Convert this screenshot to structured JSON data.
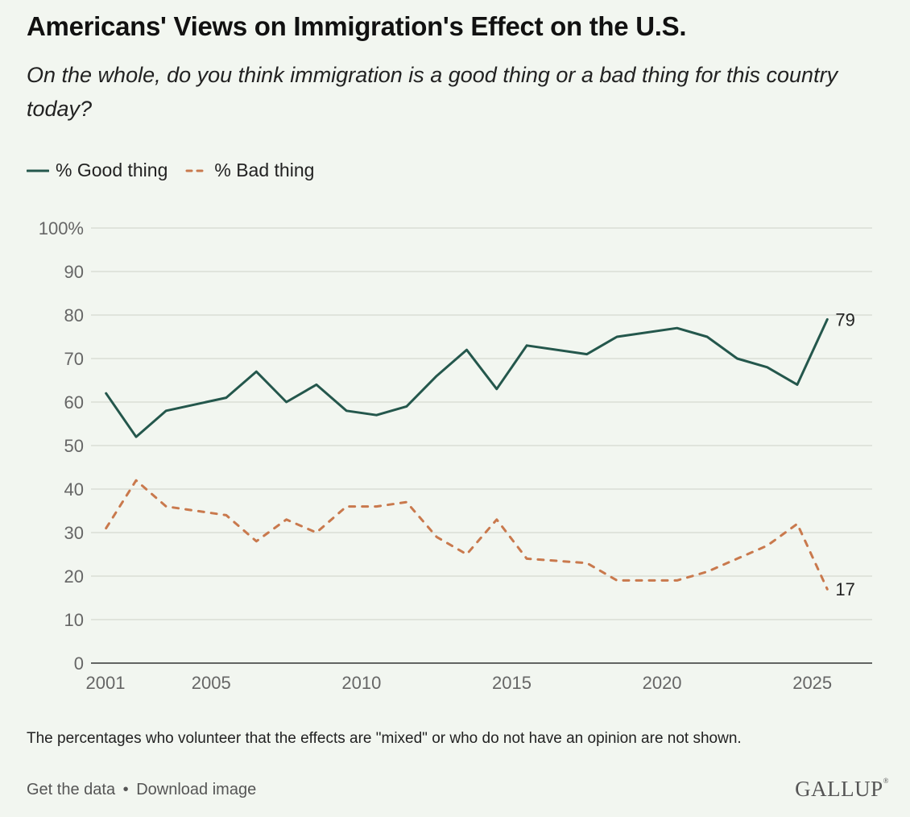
{
  "title": "Americans' Views on Immigration's Effect on the U.S.",
  "subtitle": "On the whole, do you think immigration is a good thing or a bad thing for this country today?",
  "footnote": "The percentages who volunteer that the effects are \"mixed\" or who do not have an opinion are not shown.",
  "links": {
    "get_data": "Get the data",
    "separator": "•",
    "download": "Download image"
  },
  "brand": "GALLUP",
  "colors": {
    "good": "#24574c",
    "bad": "#c9794d",
    "grid": "#d9ddd6",
    "axis": "#333333",
    "tick_text": "#666666",
    "background": "#f2f6f0"
  },
  "chart_data": {
    "type": "line",
    "x": [
      2001.5,
      2002.5,
      2003.5,
      2005.5,
      2006.5,
      2007.5,
      2008.5,
      2009.5,
      2010.5,
      2011.5,
      2012.5,
      2013.5,
      2014.5,
      2015.5,
      2017.5,
      2018.5,
      2020.5,
      2021.5,
      2022.5,
      2023.5,
      2024.5,
      2025.5
    ],
    "series": [
      {
        "name": "% Good thing",
        "color": "#24574c",
        "dash": false,
        "end_label": "79",
        "values": [
          62,
          52,
          58,
          61,
          67,
          60,
          64,
          58,
          57,
          59,
          66,
          72,
          63,
          73,
          71,
          75,
          77,
          75,
          70,
          68,
          64,
          79
        ]
      },
      {
        "name": "% Bad thing",
        "color": "#c9794d",
        "dash": true,
        "end_label": "17",
        "values": [
          31,
          42,
          36,
          34,
          28,
          33,
          30,
          36,
          36,
          37,
          29,
          25,
          33,
          24,
          23,
          19,
          19,
          21,
          24,
          27,
          32,
          17
        ]
      }
    ],
    "xticks": [
      "2001",
      "2005",
      "2010",
      "2015",
      "2020",
      "2025"
    ],
    "xtick_values": [
      2001,
      2005,
      2010,
      2015,
      2020,
      2025
    ],
    "yticks": [
      "0",
      "10",
      "20",
      "30",
      "40",
      "50",
      "60",
      "70",
      "80",
      "90",
      "100%"
    ],
    "ytick_values": [
      0,
      10,
      20,
      30,
      40,
      50,
      60,
      70,
      80,
      90,
      100
    ],
    "xlim": [
      2001,
      2026
    ],
    "ylim": [
      0,
      100
    ],
    "grid": true,
    "legend": "top-left"
  }
}
